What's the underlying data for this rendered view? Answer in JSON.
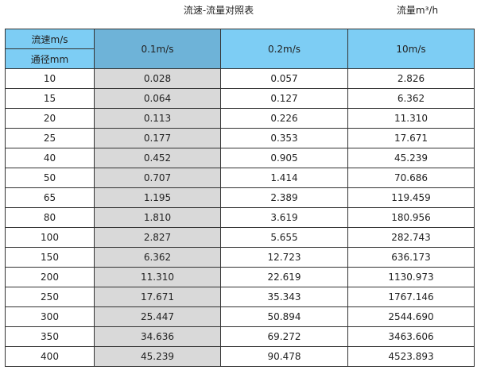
{
  "title": "流速-流量对照表",
  "unit_label": "流量m³/h",
  "colors": {
    "header": "#7dcdf4",
    "header_first_col": "#6eb3d8",
    "first_col_bg": "#d9d9d9"
  },
  "header": {
    "velocity_label": "流速m/s",
    "diameter_label": "通径mm",
    "columns": [
      "0.1m/s",
      "0.2m/s",
      "10m/s"
    ]
  },
  "rows": [
    [
      "10",
      "0.028",
      "0.057",
      "2.826"
    ],
    [
      "15",
      "0.064",
      "0.127",
      "6.362"
    ],
    [
      "20",
      "0.113",
      "0.226",
      "11.310"
    ],
    [
      "25",
      "0.177",
      "0.353",
      "17.671"
    ],
    [
      "40",
      "0.452",
      "0.905",
      "45.239"
    ],
    [
      "50",
      "0.707",
      "1.414",
      "70.686"
    ],
    [
      "65",
      "1.195",
      "2.389",
      "119.459"
    ],
    [
      "80",
      "1.810",
      "3.619",
      "180.956"
    ],
    [
      "100",
      "2.827",
      "5.655",
      "282.743"
    ],
    [
      "150",
      "6.362",
      "12.723",
      "636.173"
    ],
    [
      "200",
      "11.310",
      "22.619",
      "1130.973"
    ],
    [
      "250",
      "17.671",
      "35.343",
      "1767.146"
    ],
    [
      "300",
      "25.447",
      "50.894",
      "2544.690"
    ],
    [
      "350",
      "34.636",
      "69.272",
      "3463.606"
    ],
    [
      "400",
      "45.239",
      "90.478",
      "4523.893"
    ]
  ]
}
